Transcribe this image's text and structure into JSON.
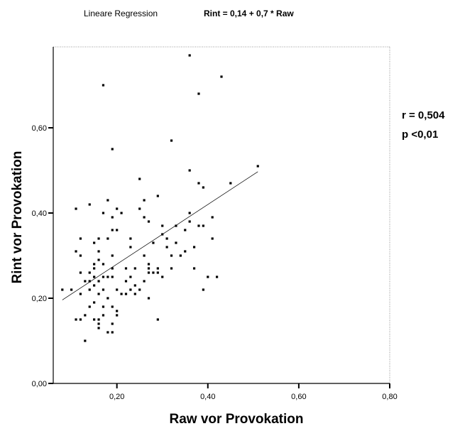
{
  "header": {
    "regression_label": "Lineare Regression",
    "equation": "Rint = 0,14 + 0,7 * Raw"
  },
  "stats": {
    "r": "r = 0,504",
    "p": "p <0,01"
  },
  "chart_data": {
    "type": "scatter",
    "title": "",
    "xlabel": "Raw vor Provokation",
    "ylabel": "Rint vor Provokation",
    "xlim": [
      0.06,
      0.8
    ],
    "ylim": [
      0.0,
      0.79
    ],
    "xticks": [
      0.2,
      0.4,
      0.6,
      0.8
    ],
    "xtick_labels": [
      "0,20",
      "0,40",
      "0,60",
      "0,80"
    ],
    "yticks": [
      0.0,
      0.2,
      0.4,
      0.6
    ],
    "ytick_labels": [
      "0,00",
      "0,20",
      "0,40",
      "0,60"
    ],
    "grid": false,
    "regression": {
      "intercept": 0.14,
      "slope": 0.7,
      "x_range": [
        0.08,
        0.51
      ]
    },
    "points": [
      [
        0.08,
        0.22
      ],
      [
        0.1,
        0.22
      ],
      [
        0.11,
        0.41
      ],
      [
        0.11,
        0.15
      ],
      [
        0.11,
        0.31
      ],
      [
        0.12,
        0.34
      ],
      [
        0.12,
        0.3
      ],
      [
        0.12,
        0.26
      ],
      [
        0.12,
        0.21
      ],
      [
        0.12,
        0.15
      ],
      [
        0.13,
        0.1
      ],
      [
        0.13,
        0.16
      ],
      [
        0.13,
        0.24
      ],
      [
        0.14,
        0.42
      ],
      [
        0.14,
        0.18
      ],
      [
        0.14,
        0.22
      ],
      [
        0.14,
        0.24
      ],
      [
        0.14,
        0.26
      ],
      [
        0.15,
        0.33
      ],
      [
        0.15,
        0.28
      ],
      [
        0.15,
        0.19
      ],
      [
        0.15,
        0.15
      ],
      [
        0.15,
        0.23
      ],
      [
        0.15,
        0.25
      ],
      [
        0.15,
        0.27
      ],
      [
        0.16,
        0.31
      ],
      [
        0.16,
        0.34
      ],
      [
        0.16,
        0.29
      ],
      [
        0.16,
        0.24
      ],
      [
        0.16,
        0.14
      ],
      [
        0.16,
        0.13
      ],
      [
        0.16,
        0.21
      ],
      [
        0.16,
        0.15
      ],
      [
        0.17,
        0.7
      ],
      [
        0.17,
        0.4
      ],
      [
        0.17,
        0.28
      ],
      [
        0.17,
        0.25
      ],
      [
        0.17,
        0.18
      ],
      [
        0.17,
        0.16
      ],
      [
        0.17,
        0.22
      ],
      [
        0.18,
        0.43
      ],
      [
        0.18,
        0.34
      ],
      [
        0.18,
        0.25
      ],
      [
        0.18,
        0.12
      ],
      [
        0.18,
        0.2
      ],
      [
        0.19,
        0.55
      ],
      [
        0.19,
        0.39
      ],
      [
        0.19,
        0.36
      ],
      [
        0.19,
        0.3
      ],
      [
        0.19,
        0.27
      ],
      [
        0.19,
        0.25
      ],
      [
        0.19,
        0.18
      ],
      [
        0.19,
        0.14
      ],
      [
        0.19,
        0.12
      ],
      [
        0.2,
        0.41
      ],
      [
        0.2,
        0.36
      ],
      [
        0.2,
        0.17
      ],
      [
        0.2,
        0.16
      ],
      [
        0.2,
        0.22
      ],
      [
        0.21,
        0.4
      ],
      [
        0.21,
        0.21
      ],
      [
        0.22,
        0.27
      ],
      [
        0.22,
        0.24
      ],
      [
        0.22,
        0.21
      ],
      [
        0.23,
        0.34
      ],
      [
        0.23,
        0.32
      ],
      [
        0.23,
        0.25
      ],
      [
        0.23,
        0.22
      ],
      [
        0.24,
        0.27
      ],
      [
        0.24,
        0.23
      ],
      [
        0.24,
        0.21
      ],
      [
        0.25,
        0.48
      ],
      [
        0.25,
        0.41
      ],
      [
        0.25,
        0.22
      ],
      [
        0.26,
        0.43
      ],
      [
        0.26,
        0.39
      ],
      [
        0.26,
        0.3
      ],
      [
        0.26,
        0.24
      ],
      [
        0.27,
        0.38
      ],
      [
        0.27,
        0.28
      ],
      [
        0.27,
        0.27
      ],
      [
        0.27,
        0.26
      ],
      [
        0.27,
        0.2
      ],
      [
        0.28,
        0.33
      ],
      [
        0.28,
        0.26
      ],
      [
        0.29,
        0.44
      ],
      [
        0.29,
        0.27
      ],
      [
        0.29,
        0.26
      ],
      [
        0.29,
        0.15
      ],
      [
        0.3,
        0.37
      ],
      [
        0.3,
        0.35
      ],
      [
        0.3,
        0.25
      ],
      [
        0.31,
        0.34
      ],
      [
        0.31,
        0.32
      ],
      [
        0.32,
        0.57
      ],
      [
        0.32,
        0.3
      ],
      [
        0.32,
        0.27
      ],
      [
        0.33,
        0.37
      ],
      [
        0.33,
        0.33
      ],
      [
        0.34,
        0.3
      ],
      [
        0.35,
        0.36
      ],
      [
        0.35,
        0.31
      ],
      [
        0.36,
        0.77
      ],
      [
        0.36,
        0.5
      ],
      [
        0.36,
        0.4
      ],
      [
        0.36,
        0.38
      ],
      [
        0.37,
        0.32
      ],
      [
        0.37,
        0.27
      ],
      [
        0.38,
        0.68
      ],
      [
        0.38,
        0.47
      ],
      [
        0.38,
        0.37
      ],
      [
        0.39,
        0.46
      ],
      [
        0.39,
        0.37
      ],
      [
        0.39,
        0.22
      ],
      [
        0.4,
        0.25
      ],
      [
        0.41,
        0.39
      ],
      [
        0.41,
        0.34
      ],
      [
        0.42,
        0.25
      ],
      [
        0.43,
        0.72
      ],
      [
        0.45,
        0.47
      ],
      [
        0.51,
        0.51
      ]
    ]
  }
}
